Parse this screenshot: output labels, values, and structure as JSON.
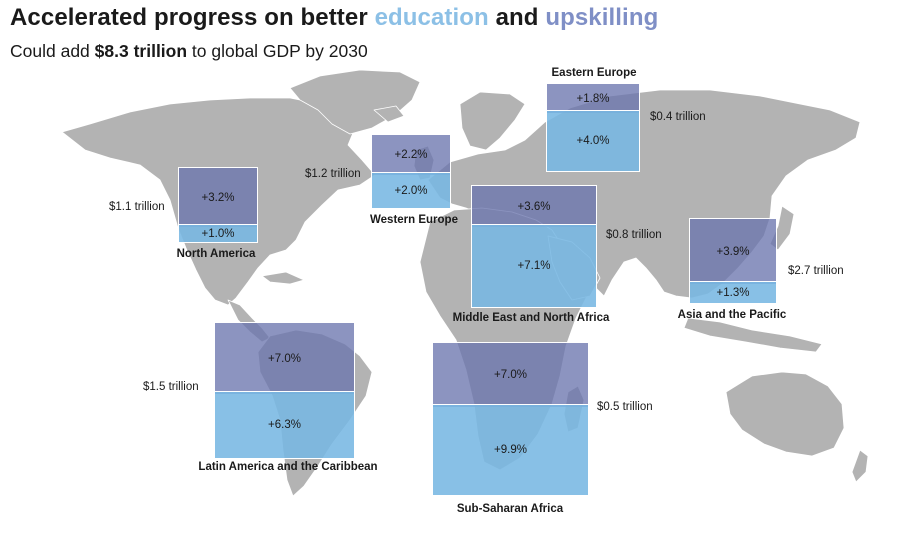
{
  "title": {
    "main": "Accelerated progress on better ",
    "word1": "education",
    "mid": " and ",
    "word2": "upskilling"
  },
  "subtitle": {
    "pre": "Could add ",
    "bold": "$8.3 trillion",
    "post": " to global GDP by 2030"
  },
  "colors": {
    "education": "#8cc0e6",
    "upskilling": "#7f8fc6",
    "land": "#b3b3b3"
  },
  "regions": [
    {
      "name": "North America",
      "upskilling": "+3.2%",
      "education": "+1.0%",
      "gdp": "$1.1 trillion"
    },
    {
      "name": "Western Europe",
      "upskilling": "+2.2%",
      "education": "+2.0%",
      "gdp": "$1.2 trillion"
    },
    {
      "name": "Eastern Europe",
      "upskilling": "+1.8%",
      "education": "+4.0%",
      "gdp": "$0.4 trillion"
    },
    {
      "name": "Middle East and North Africa",
      "upskilling": "+3.6%",
      "education": "+7.1%",
      "gdp": "$0.8 trillion"
    },
    {
      "name": "Asia and the Pacific",
      "upskilling": "+3.9%",
      "education": "+1.3%",
      "gdp": "$2.7 trillion"
    },
    {
      "name": "Latin America and the Caribbean",
      "upskilling": "+7.0%",
      "education": "+6.3%",
      "gdp": "$1.5 trillion"
    },
    {
      "name": "Sub-Saharan Africa",
      "upskilling": "+7.0%",
      "education": "+9.9%",
      "gdp": "$0.5 trillion"
    }
  ]
}
